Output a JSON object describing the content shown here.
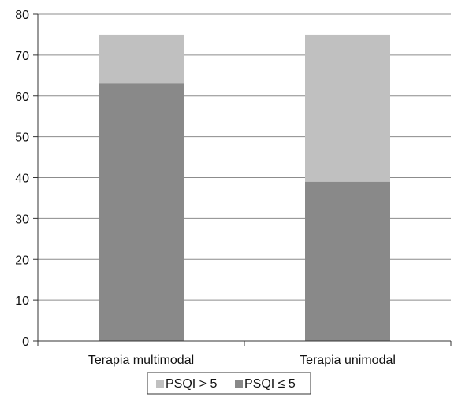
{
  "chart_data": {
    "type": "bar",
    "stacked": true,
    "categories": [
      "Terapia multimodal",
      "Terapia unimodal"
    ],
    "series": [
      {
        "name": "PSQI ≤ 5",
        "values": [
          63,
          39
        ],
        "color": "#898989"
      },
      {
        "name": "PSQI > 5",
        "values": [
          12,
          36
        ],
        "color": "#c0c0c0"
      }
    ],
    "title": "",
    "xlabel": "",
    "ylabel": "",
    "ylim": [
      0,
      80
    ],
    "yticks": [
      0,
      10,
      20,
      30,
      40,
      50,
      60,
      70,
      80
    ],
    "grid": true,
    "legend_position": "bottom",
    "legend_order": [
      1,
      0
    ]
  }
}
